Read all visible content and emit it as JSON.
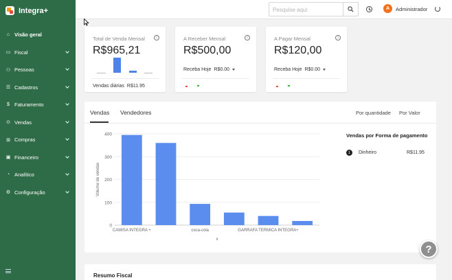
{
  "app": {
    "name": "Integra+"
  },
  "sidebar": {
    "items": [
      {
        "label": "Visão geral",
        "icon": "home-icon",
        "active": true
      },
      {
        "label": "Fiscal",
        "icon": "folder-icon"
      },
      {
        "label": "Pessoas",
        "icon": "users-icon"
      },
      {
        "label": "Cadastros",
        "icon": "list-icon"
      },
      {
        "label": "Faturamento",
        "icon": "money-icon"
      },
      {
        "label": "Vendas",
        "icon": "cart-icon"
      },
      {
        "label": "Compras",
        "icon": "truck-icon"
      },
      {
        "label": "Financeiro",
        "icon": "card-icon"
      },
      {
        "label": "Analítico",
        "icon": "analytics-icon"
      },
      {
        "label": "Configuração",
        "icon": "gear-icon"
      }
    ]
  },
  "topbar": {
    "search_placeholder": "Pesquise aqui",
    "avatar_initial": "A",
    "user_name": "Administrador"
  },
  "cards": {
    "total": {
      "title": "Total de Venda Mensal",
      "value": "R$965,21",
      "sub_label": "Vendas diárias",
      "sub_amount": "R$11.95"
    },
    "receber": {
      "title": "A Receber Mensal",
      "value": "R$500,00",
      "sub_label": "Receba Hoje",
      "sub_amount": "R$0.00"
    },
    "pagar": {
      "title": "A Pagar Mensal",
      "value": "R$120,00",
      "sub_label": "Receba Hoje",
      "sub_amount": "R$0.00"
    }
  },
  "sales_panel": {
    "tabs": [
      "Vendas",
      "Vendedores"
    ],
    "sort_options": [
      "Por quantidade",
      "Por Valor"
    ],
    "payments_title": "Vendas por Forma de pagamento",
    "payments": [
      {
        "rank": "1",
        "name": "Dinheiro",
        "amount": "R$11.95"
      }
    ]
  },
  "chart_data": {
    "type": "bar",
    "categories": [
      "CAMISA INTEGRA +",
      "",
      "coca-cola",
      "",
      "GARRAFA TERMICA INTEGRA+",
      ""
    ],
    "values": [
      395,
      360,
      93,
      55,
      40,
      18
    ],
    "xlabel": "x",
    "ylabel": "Volume de vendas",
    "ylim": [
      0,
      400
    ],
    "yticks": [
      0,
      100,
      200,
      300,
      400
    ],
    "grid": true,
    "color": "#5b8def"
  },
  "help": {
    "label": "?"
  },
  "fiscal": {
    "title": "Resumo Fiscal"
  }
}
